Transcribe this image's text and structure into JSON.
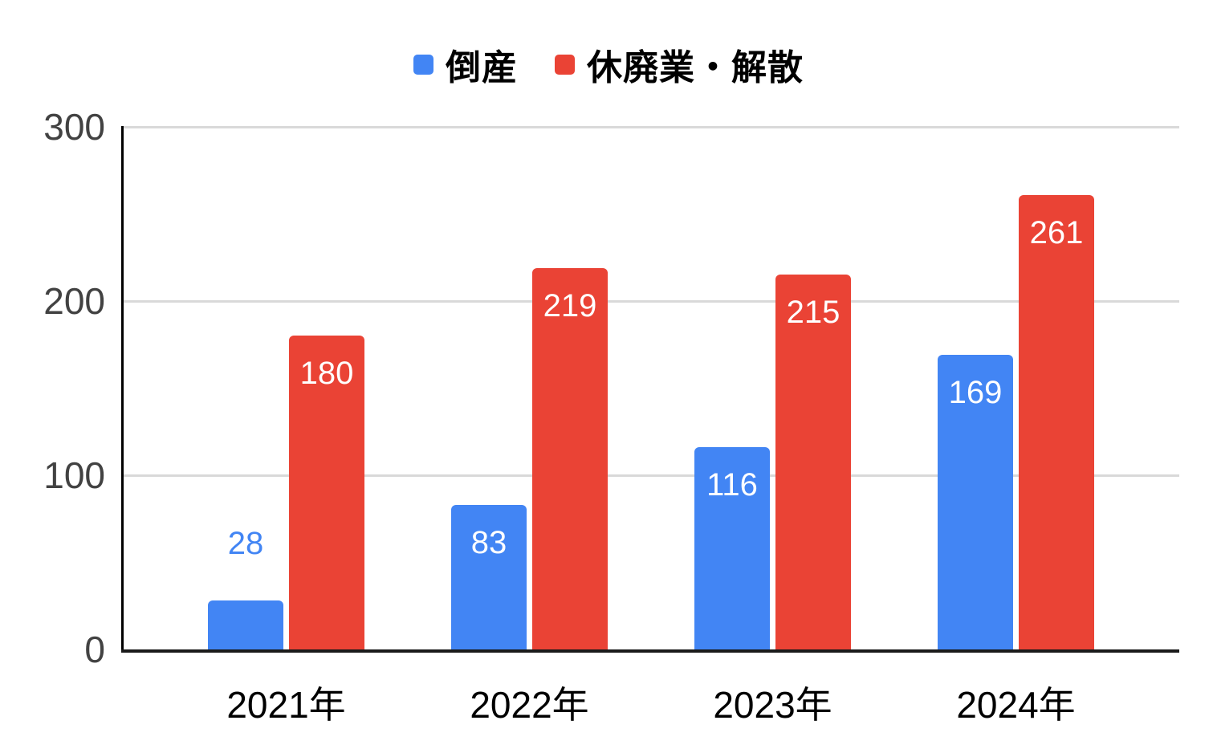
{
  "legend": {
    "items": [
      {
        "label": "倒産",
        "color": "#4285f4"
      },
      {
        "label": "休廃業・解散",
        "color": "#ea4335"
      }
    ]
  },
  "chart_data": {
    "type": "bar",
    "title": "",
    "categories": [
      "2021年",
      "2022年",
      "2023年",
      "2024年"
    ],
    "series": [
      {
        "name": "倒産",
        "color": "#4285f4",
        "values": [
          28,
          83,
          116,
          169
        ]
      },
      {
        "name": "休廃業・解散",
        "color": "#ea4335",
        "values": [
          180,
          219,
          215,
          261
        ]
      }
    ],
    "ylim": [
      0,
      300
    ],
    "yticks": [
      0,
      100,
      200,
      300
    ],
    "grid": true,
    "legend_position": "top",
    "value_labels": {
      "inside_color": "#ffffff",
      "outside_uses_series_color": true
    },
    "colors": {
      "axis": "#1a1a1a",
      "gridline": "#d9d9d9",
      "y_tick_text": "#424242",
      "x_tick_text": "#000000"
    }
  }
}
